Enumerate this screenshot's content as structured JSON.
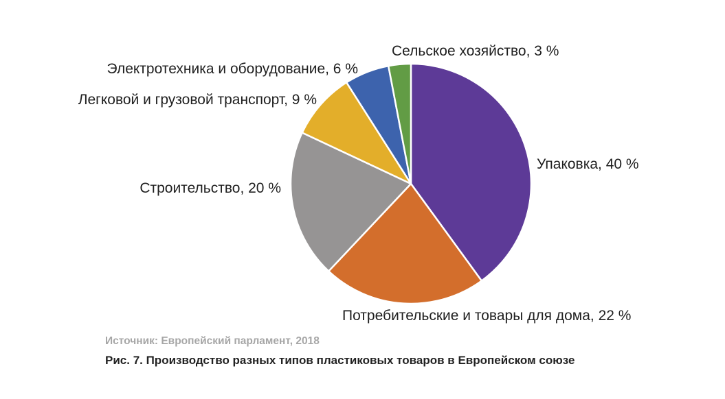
{
  "chart_data": {
    "type": "pie",
    "categories": [
      "Упаковка",
      "Потребительские и товары для дома",
      "Строительство",
      "Легковой и грузовой транспорт",
      "Электротехника и оборудование",
      "Сельское хозяйство"
    ],
    "values": [
      40,
      22,
      20,
      9,
      6,
      3
    ],
    "unit": "%",
    "data_labels": [
      "Упаковка, 40 %",
      "Потребительские и товары для дома, 22 %",
      "Строительство, 20 %",
      "Легковой и грузовой транспорт, 9 %",
      "Электротехника и оборудование, 6 %",
      "Сельское хозяйство, 3 %"
    ],
    "colors": [
      "#5d3a97",
      "#d36e2c",
      "#969494",
      "#e3ae2a",
      "#3d63ad",
      "#629c45"
    ],
    "source": "Источник: Европейский парламент, 2018",
    "title": "Рис. 7. Производство разных типов пластиковых товаров в Европейском союзе"
  }
}
